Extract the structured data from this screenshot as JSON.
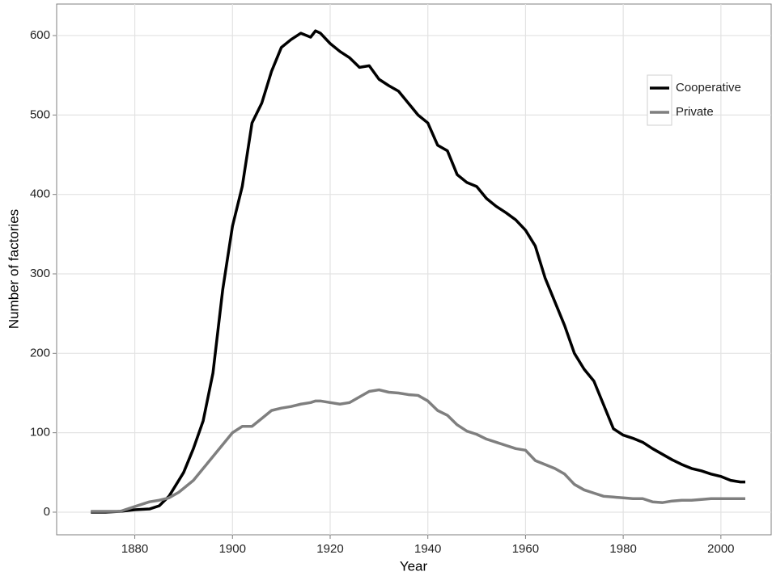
{
  "chart_data": {
    "type": "line",
    "x_label": "Year",
    "y_label": "Number of factories",
    "x": [
      1871,
      1874,
      1877,
      1880,
      1883,
      1885,
      1887,
      1889,
      1890,
      1892,
      1894,
      1896,
      1898,
      1900,
      1902,
      1904,
      1906,
      1908,
      1910,
      1912,
      1914,
      1916,
      1917,
      1918,
      1920,
      1922,
      1924,
      1926,
      1928,
      1930,
      1932,
      1934,
      1936,
      1938,
      1940,
      1942,
      1944,
      1946,
      1948,
      1950,
      1952,
      1954,
      1956,
      1958,
      1960,
      1962,
      1964,
      1966,
      1968,
      1970,
      1972,
      1974,
      1976,
      1978,
      1980,
      1982,
      1984,
      1986,
      1988,
      1990,
      1992,
      1994,
      1996,
      1998,
      2000,
      2002,
      2004,
      2005
    ],
    "series": [
      {
        "name": "Cooperative",
        "color": "#000000",
        "values": [
          0,
          0,
          1,
          3,
          4,
          8,
          20,
          40,
          50,
          80,
          115,
          175,
          280,
          360,
          410,
          490,
          515,
          555,
          585,
          595,
          603,
          598,
          606,
          603,
          590,
          580,
          572,
          560,
          562,
          545,
          537,
          530,
          515,
          500,
          490,
          462,
          455,
          425,
          415,
          410,
          395,
          385,
          377,
          368,
          355,
          335,
          295,
          265,
          235,
          200,
          180,
          165,
          135,
          105,
          97,
          93,
          88,
          80,
          73,
          66,
          60,
          55,
          52,
          48,
          45,
          40,
          38,
          38
        ]
      },
      {
        "name": "Private",
        "color": "#7f7f7f",
        "values": [
          1,
          1,
          1,
          7,
          13,
          15,
          18,
          25,
          30,
          40,
          55,
          70,
          85,
          100,
          108,
          108,
          118,
          128,
          131,
          133,
          136,
          138,
          140,
          140,
          138,
          136,
          138,
          145,
          152,
          154,
          151,
          150,
          148,
          147,
          140,
          128,
          122,
          110,
          102,
          98,
          92,
          88,
          84,
          80,
          78,
          65,
          60,
          55,
          48,
          35,
          28,
          24,
          20,
          19,
          18,
          17,
          17,
          13,
          12,
          14,
          15,
          15,
          16,
          17,
          17,
          17,
          17,
          17
        ]
      }
    ],
    "xlim": [
      1864,
      2010.3
    ],
    "xticks": [
      1880,
      1900,
      1920,
      1940,
      1960,
      1980,
      2000
    ],
    "ylim": [
      -28.5,
      639.7
    ],
    "yticks": [
      0,
      100,
      200,
      300,
      400,
      500,
      600
    ],
    "grid": true,
    "legend": "top-right"
  }
}
